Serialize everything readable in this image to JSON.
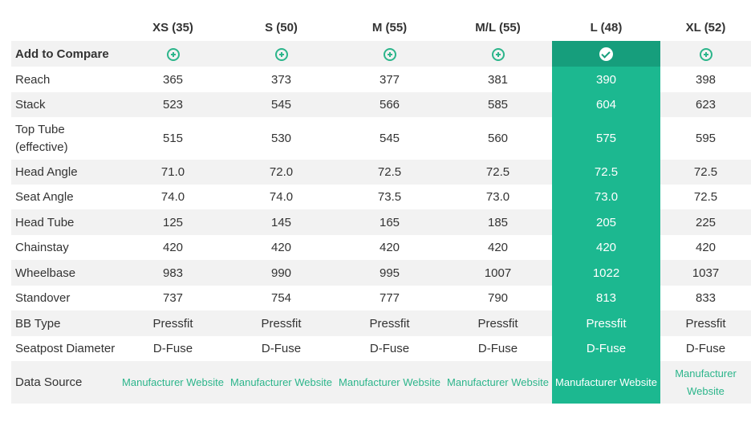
{
  "sizes": [
    "XS (35)",
    "S (50)",
    "M (55)",
    "M/L (55)",
    "L (48)",
    "XL (52)"
  ],
  "selected_index": 4,
  "compare_label": "Add to Compare",
  "rows": [
    {
      "label": "Reach",
      "values": [
        "365",
        "373",
        "377",
        "381",
        "390",
        "398"
      ]
    },
    {
      "label": "Stack",
      "values": [
        "523",
        "545",
        "566",
        "585",
        "604",
        "623"
      ]
    },
    {
      "label": "Top Tube (effective)",
      "values": [
        "515",
        "530",
        "545",
        "560",
        "575",
        "595"
      ]
    },
    {
      "label": "Head Angle",
      "values": [
        "71.0",
        "72.0",
        "72.5",
        "72.5",
        "72.5",
        "72.5"
      ]
    },
    {
      "label": "Seat Angle",
      "values": [
        "74.0",
        "74.0",
        "73.5",
        "73.0",
        "73.0",
        "72.5"
      ]
    },
    {
      "label": "Head Tube",
      "values": [
        "125",
        "145",
        "165",
        "185",
        "205",
        "225"
      ]
    },
    {
      "label": "Chainstay",
      "values": [
        "420",
        "420",
        "420",
        "420",
        "420",
        "420"
      ]
    },
    {
      "label": "Wheelbase",
      "values": [
        "983",
        "990",
        "995",
        "1007",
        "1022",
        "1037"
      ]
    },
    {
      "label": "Standover",
      "values": [
        "737",
        "754",
        "777",
        "790",
        "813",
        "833"
      ]
    },
    {
      "label": "BB Type",
      "values": [
        "Pressfit",
        "Pressfit",
        "Pressfit",
        "Pressfit",
        "Pressfit",
        "Pressfit"
      ]
    },
    {
      "label": "Seatpost Diameter",
      "values": [
        "D-Fuse",
        "D-Fuse",
        "D-Fuse",
        "D-Fuse",
        "D-Fuse",
        "D-Fuse"
      ]
    }
  ],
  "data_source": {
    "label": "Data Source",
    "link_text": "Manufacturer Website"
  },
  "colors": {
    "accent": "#2cb58b",
    "highlight": "#1cb890",
    "highlight_dark": "#169e7c",
    "stripe": "#f2f2f2"
  }
}
